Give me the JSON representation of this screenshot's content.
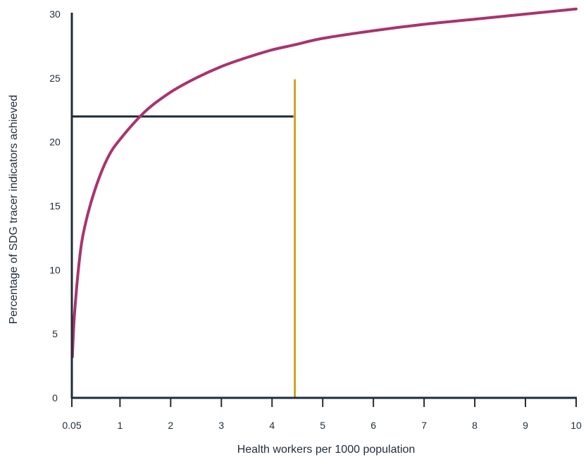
{
  "chart_data": {
    "type": "line",
    "title": "",
    "xlabel": "Health workers per 1000 population",
    "ylabel": "Percentage of SDG tracer indicators achieved",
    "x_tick_labels": [
      "0.05",
      "1",
      "2",
      "3",
      "4",
      "5",
      "6",
      "7",
      "8",
      "9",
      "10"
    ],
    "y_tick_labels": [
      "0",
      "5",
      "10",
      "15",
      "20",
      "25",
      "30"
    ],
    "xlim": [
      0.05,
      10
    ],
    "ylim": [
      0,
      30
    ],
    "grid": false,
    "legend": "none",
    "series": [
      {
        "color": "#a8346e",
        "x": [
          0.06,
          0.1,
          0.2,
          0.3,
          0.5,
          0.75,
          1,
          1.5,
          2,
          2.5,
          3,
          3.5,
          4,
          4.45,
          5,
          6,
          7,
          8,
          9,
          10
        ],
        "y": [
          3.2,
          6.4,
          10.8,
          13.3,
          16.2,
          18.7,
          20.2,
          22.4,
          23.9,
          25.0,
          25.9,
          26.6,
          27.2,
          27.6,
          28.1,
          28.7,
          29.2,
          29.6,
          30.0,
          30.4
        ]
      }
    ],
    "reference_lines": [
      {
        "orientation": "horizontal",
        "y": 22,
        "x_from": 0.05,
        "x_to": 4.45,
        "color": "#1f2d3a"
      },
      {
        "orientation": "vertical",
        "x": 4.45,
        "y_from": 0,
        "y_to": 24.9,
        "color": "#c9a227"
      }
    ]
  }
}
